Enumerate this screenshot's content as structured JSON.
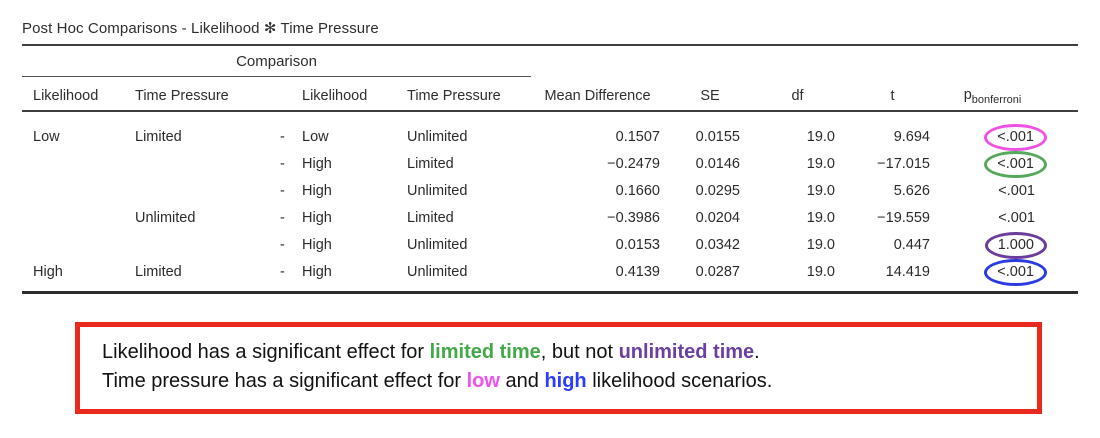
{
  "table": {
    "title": "Post Hoc Comparisons - Likelihood ✻ Time Pressure",
    "spanner_header": "Comparison",
    "columns": {
      "likelihood_a": "Likelihood",
      "time_pressure_a": "Time Pressure",
      "likelihood_b": "Likelihood",
      "time_pressure_b": "Time Pressure",
      "mean_difference": "Mean Difference",
      "se": "SE",
      "df": "df",
      "t": "t",
      "p_base": "p",
      "p_sub": "bonferroni"
    },
    "rows": [
      {
        "likelihood_a": "Low",
        "time_pressure_a": "Limited",
        "dash": "-",
        "likelihood_b": "Low",
        "time_pressure_b": "Unlimited",
        "mean_difference": "0.1507",
        "se": "0.0155",
        "df": "19.0",
        "t": "9.694",
        "p": "<.001",
        "annotation": "pink-ellipse"
      },
      {
        "likelihood_a": "",
        "time_pressure_a": "",
        "dash": "-",
        "likelihood_b": "High",
        "time_pressure_b": "Limited",
        "mean_difference": "−0.2479",
        "se": "0.0146",
        "df": "19.0",
        "t": "−17.015",
        "p": "<.001",
        "annotation": "green-ellipse"
      },
      {
        "likelihood_a": "",
        "time_pressure_a": "",
        "dash": "-",
        "likelihood_b": "High",
        "time_pressure_b": "Unlimited",
        "mean_difference": "0.1660",
        "se": "0.0295",
        "df": "19.0",
        "t": "5.626",
        "p": "<.001",
        "annotation": ""
      },
      {
        "likelihood_a": "",
        "time_pressure_a": "Unlimited",
        "dash": "-",
        "likelihood_b": "High",
        "time_pressure_b": "Limited",
        "mean_difference": "−0.3986",
        "se": "0.0204",
        "df": "19.0",
        "t": "−19.559",
        "p": "<.001",
        "annotation": ""
      },
      {
        "likelihood_a": "",
        "time_pressure_a": "",
        "dash": "-",
        "likelihood_b": "High",
        "time_pressure_b": "Unlimited",
        "mean_difference": "0.0153",
        "se": "0.0342",
        "df": "19.0",
        "t": "0.447",
        "p": "1.000",
        "annotation": "purple-ellipse"
      },
      {
        "likelihood_a": "High",
        "time_pressure_a": "Limited",
        "dash": "-",
        "likelihood_b": "High",
        "time_pressure_b": "Unlimited",
        "mean_difference": "0.4139",
        "se": "0.0287",
        "df": "19.0",
        "t": "14.419",
        "p": "<.001",
        "annotation": "blue-ellipse"
      }
    ]
  },
  "colors": {
    "ellipse_pink": "#ee52e2",
    "ellipse_green": "#56a85c",
    "ellipse_purple": "#6a3d9c",
    "ellipse_blue": "#2b3be0",
    "note_border_red": "#e8291c",
    "note_green": "#43a848",
    "note_purple": "#6b3fa0",
    "note_pink": "#ee52ee",
    "note_blue": "#2b3cfe"
  },
  "note": {
    "line1_pre": "Likelihood has a significant effect for ",
    "line1_green": "limited time",
    "line1_mid": ", but not ",
    "line1_purple": "unlimited time",
    "line1_end": ".",
    "line2_pre": "Time pressure has a significant effect for ",
    "line2_pink": "low",
    "line2_mid": " and ",
    "line2_blue": "high",
    "line2_end": " likelihood scenarios."
  }
}
